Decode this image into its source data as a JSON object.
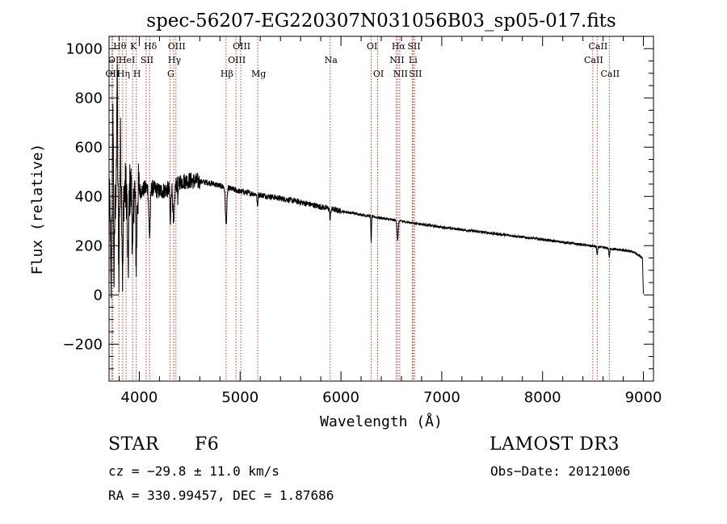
{
  "chart_data": {
    "type": "line",
    "title": "spec-56207-EG220307N031056B03_sp05-017.fits",
    "xlabel": "Wavelength (Å)",
    "ylabel": "Flux (relative)",
    "xlim": [
      3700,
      9100
    ],
    "ylim": [
      -350,
      1050
    ],
    "xticks": [
      4000,
      5000,
      6000,
      7000,
      8000,
      9000
    ],
    "xtick_labels": [
      "4000",
      "5000",
      "6000",
      "7000",
      "8000",
      "9000"
    ],
    "yticks": [
      -200,
      0,
      200,
      400,
      600,
      800,
      1000
    ],
    "ytick_labels": [
      "−200",
      "0",
      "200",
      "400",
      "600",
      "800",
      "1000"
    ],
    "series": [
      {
        "name": "spectrum",
        "continuum": [
          {
            "x": 3700,
            "y": 350
          },
          {
            "x": 3800,
            "y": 420
          },
          {
            "x": 3900,
            "y": 430
          },
          {
            "x": 4000,
            "y": 420
          },
          {
            "x": 4100,
            "y": 440
          },
          {
            "x": 4200,
            "y": 420
          },
          {
            "x": 4300,
            "y": 430
          },
          {
            "x": 4400,
            "y": 460
          },
          {
            "x": 4500,
            "y": 465
          },
          {
            "x": 4700,
            "y": 455
          },
          {
            "x": 5000,
            "y": 420
          },
          {
            "x": 5500,
            "y": 385
          },
          {
            "x": 6000,
            "y": 340
          },
          {
            "x": 6500,
            "y": 305
          },
          {
            "x": 7000,
            "y": 275
          },
          {
            "x": 7500,
            "y": 250
          },
          {
            "x": 8000,
            "y": 225
          },
          {
            "x": 8500,
            "y": 198
          },
          {
            "x": 8900,
            "y": 175
          },
          {
            "x": 8990,
            "y": 150
          },
          {
            "x": 9000,
            "y": 0
          }
        ],
        "absorption": [
          {
            "x": 3720,
            "depth": 380,
            "width": 6
          },
          {
            "x": 3750,
            "depth": 330,
            "width": 6
          },
          {
            "x": 3798,
            "depth": 310,
            "width": 6
          },
          {
            "x": 3835,
            "depth": 350,
            "width": 7
          },
          {
            "x": 3889,
            "depth": 330,
            "width": 8
          },
          {
            "x": 3934,
            "depth": 300,
            "width": 7
          },
          {
            "x": 3970,
            "depth": 280,
            "width": 8
          },
          {
            "x": 4102,
            "depth": 200,
            "width": 10
          },
          {
            "x": 4308,
            "depth": 150,
            "width": 6
          },
          {
            "x": 4341,
            "depth": 170,
            "width": 10
          },
          {
            "x": 4383,
            "depth": 60,
            "width": 5
          },
          {
            "x": 4861,
            "depth": 150,
            "width": 10
          },
          {
            "x": 5172,
            "depth": 50,
            "width": 6
          },
          {
            "x": 5893,
            "depth": 45,
            "width": 6
          },
          {
            "x": 6300,
            "depth": 110,
            "width": 4
          },
          {
            "x": 6563,
            "depth": 80,
            "width": 8
          },
          {
            "x": 8542,
            "depth": 35,
            "width": 6
          },
          {
            "x": 8662,
            "depth": 35,
            "width": 6
          }
        ],
        "emission": [
          {
            "x": 3780,
            "height": 520,
            "width": 5
          },
          {
            "x": 3740,
            "height": 380,
            "width": 5
          },
          {
            "x": 3815,
            "height": 200,
            "width": 5
          }
        ],
        "noise": [
          {
            "from": 3700,
            "to": 4000,
            "amp": 120
          },
          {
            "from": 4000,
            "to": 4600,
            "amp": 35
          },
          {
            "from": 4600,
            "to": 6000,
            "amp": 12
          },
          {
            "from": 6000,
            "to": 9000,
            "amp": 5
          }
        ]
      }
    ],
    "lines": [
      {
        "x": 3727,
        "label": "OII",
        "row": 3
      },
      {
        "x": 3737,
        "label": "OI",
        "row": 2
      },
      {
        "x": 3798,
        "label": "Hθ",
        "row": 1
      },
      {
        "x": 3835,
        "label": "Hη",
        "row": 3
      },
      {
        "x": 3869,
        "label": "HeI",
        "row": 2
      },
      {
        "x": 3934,
        "label": "K",
        "row": 1
      },
      {
        "x": 3970,
        "label": "H",
        "row": 3
      },
      {
        "x": 4068,
        "label": "SII",
        "row": 2
      },
      {
        "x": 4102,
        "label": "Hδ",
        "row": 1
      },
      {
        "x": 4304,
        "label": "G",
        "row": 3
      },
      {
        "x": 4341,
        "label": "Hγ",
        "row": 2
      },
      {
        "x": 4363,
        "label": "OIII",
        "row": 1
      },
      {
        "x": 4861,
        "label": "Hβ",
        "row": 3
      },
      {
        "x": 4959,
        "label": "OIII",
        "row": 2
      },
      {
        "x": 5007,
        "label": "OIII",
        "row": 1
      },
      {
        "x": 5175,
        "label": "Mg",
        "row": 3
      },
      {
        "x": 5893,
        "label": "Na",
        "row": 2
      },
      {
        "x": 6300,
        "label": "OI",
        "row": 1
      },
      {
        "x": 6364,
        "label": "OI",
        "row": 3
      },
      {
        "x": 6548,
        "label": "NII",
        "row": 2
      },
      {
        "x": 6563,
        "label": "Hα",
        "row": 1
      },
      {
        "x": 6583,
        "label": "NII",
        "row": 3
      },
      {
        "x": 6707,
        "label": "Li",
        "row": 2
      },
      {
        "x": 6716,
        "label": "SII",
        "row": 1
      },
      {
        "x": 6731,
        "label": "SII",
        "row": 3
      },
      {
        "x": 8498,
        "label": "CaII",
        "row": 2
      },
      {
        "x": 8542,
        "label": "CaII",
        "row": 1
      },
      {
        "x": 8662,
        "label": "CaII",
        "row": 3
      }
    ]
  },
  "info": {
    "class": "STAR",
    "subclass": "F6",
    "survey": "LAMOST DR3",
    "redshift": "cz = −29.8 ± 11.0 km/s",
    "obs_date": "Obs−Date: 20121006",
    "coords": "RA = 330.99457, DEC =    1.87686"
  },
  "colors": {
    "line_marker": "#c0392b",
    "spectrum": "#000000",
    "axis": "#000000"
  }
}
